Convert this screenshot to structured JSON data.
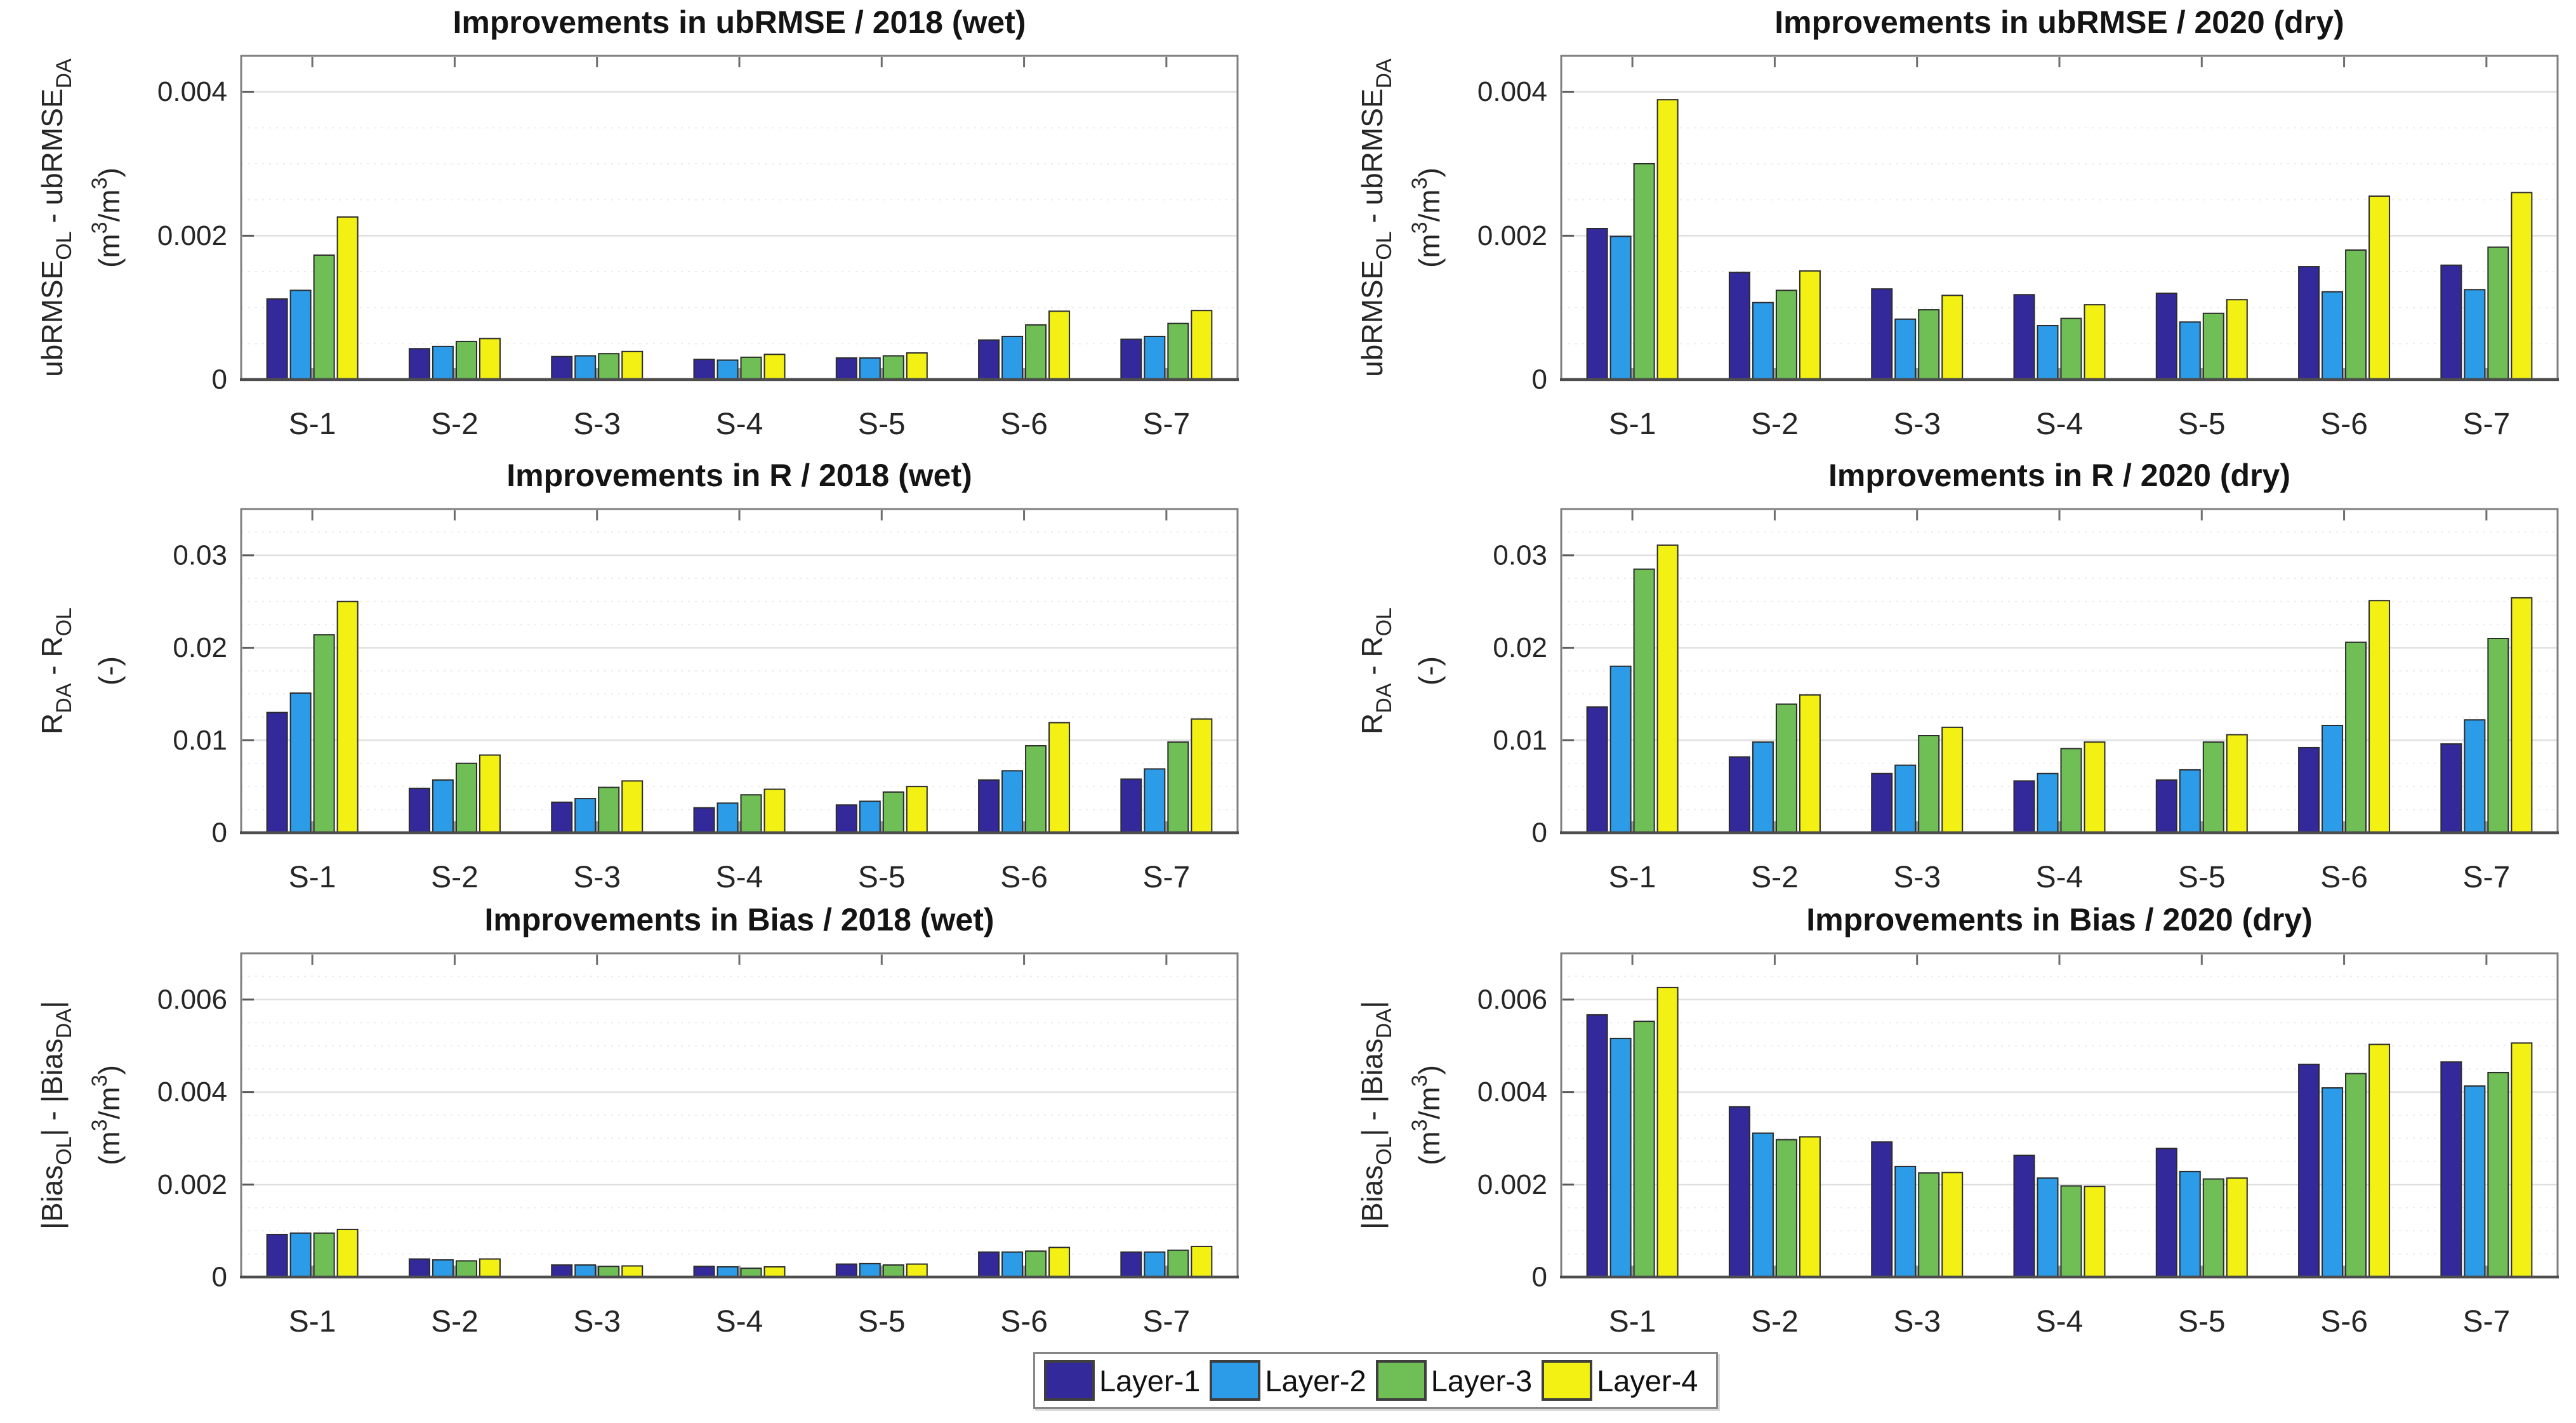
{
  "figure": {
    "background": "#FFFFFF"
  },
  "palette": {
    "bar_edge": "#2B2B2B",
    "axis_box": "#7F7F7F",
    "axis_x": "#4D4D4D",
    "grid_major": "#DFDFDF",
    "grid_minor": "#ECECEC",
    "tick_top": "#6E6E6E",
    "tick_bottom": "#9C9C9C",
    "tick_y": "#5A5A5A",
    "text": "#262626",
    "title": "#141414"
  },
  "legend": {
    "entries": [
      {
        "label": "Layer-1",
        "color": "#34299B"
      },
      {
        "label": "Layer-2",
        "color": "#2D9CE8"
      },
      {
        "label": "Layer-3",
        "color": "#6FBE56"
      },
      {
        "label": "Layer-4",
        "color": "#F3F013"
      }
    ]
  },
  "chart_data": [
    {
      "id": "ubrmse-2018-wet",
      "type": "bar",
      "title": "Improvements in ubRMSE / 2018 (wet)",
      "ylabel": [
        {
          "t": "ubRMSE"
        },
        {
          "t": "OL",
          "sub": true
        },
        {
          "t": " - ubRMSE"
        },
        {
          "t": "DA",
          "sub": true
        }
      ],
      "yunits": [
        {
          "t": "(m"
        },
        {
          "t": "3",
          "sup": true
        },
        {
          "t": "/m"
        },
        {
          "t": "3",
          "sup": true
        },
        {
          "t": ")"
        }
      ],
      "categories": [
        "S-1",
        "S-2",
        "S-3",
        "S-4",
        "S-5",
        "S-6",
        "S-7"
      ],
      "ylim": [
        0,
        0.0045
      ],
      "yticks": [
        0,
        0.002,
        0.004
      ],
      "ytick_labels": [
        "0",
        "0.002",
        "0.004"
      ],
      "minor_step": 0.0005,
      "grid": true,
      "legend_position": "south-outside",
      "series": [
        {
          "name": "Layer-1",
          "values": [
            0.00112,
            0.00043,
            0.00032,
            0.00028,
            0.0003,
            0.00055,
            0.00056
          ]
        },
        {
          "name": "Layer-2",
          "values": [
            0.00124,
            0.00046,
            0.00033,
            0.00027,
            0.0003,
            0.0006,
            0.0006
          ]
        },
        {
          "name": "Layer-3",
          "values": [
            0.00173,
            0.00053,
            0.00036,
            0.00031,
            0.00033,
            0.00076,
            0.00078
          ]
        },
        {
          "name": "Layer-4",
          "values": [
            0.00226,
            0.00057,
            0.00039,
            0.00035,
            0.00037,
            0.00095,
            0.00096
          ]
        }
      ]
    },
    {
      "id": "ubrmse-2020-dry",
      "type": "bar",
      "title": "Improvements in ubRMSE / 2020 (dry)",
      "ylabel": [
        {
          "t": "ubRMSE"
        },
        {
          "t": "OL",
          "sub": true
        },
        {
          "t": " - ubRMSE"
        },
        {
          "t": "DA",
          "sub": true
        }
      ],
      "yunits": [
        {
          "t": "(m"
        },
        {
          "t": "3",
          "sup": true
        },
        {
          "t": "/m"
        },
        {
          "t": "3",
          "sup": true
        },
        {
          "t": ")"
        }
      ],
      "categories": [
        "S-1",
        "S-2",
        "S-3",
        "S-4",
        "S-5",
        "S-6",
        "S-7"
      ],
      "ylim": [
        0,
        0.0045
      ],
      "yticks": [
        0,
        0.002,
        0.004
      ],
      "ytick_labels": [
        "0",
        "0.002",
        "0.004"
      ],
      "minor_step": 0.0005,
      "grid": true,
      "series": [
        {
          "name": "Layer-1",
          "values": [
            0.0021,
            0.00149,
            0.00126,
            0.00118,
            0.0012,
            0.00157,
            0.00159
          ]
        },
        {
          "name": "Layer-2",
          "values": [
            0.00199,
            0.00107,
            0.00084,
            0.00075,
            0.0008,
            0.00122,
            0.00125
          ]
        },
        {
          "name": "Layer-3",
          "values": [
            0.003,
            0.00124,
            0.00097,
            0.00085,
            0.00092,
            0.0018,
            0.00184
          ]
        },
        {
          "name": "Layer-4",
          "values": [
            0.00389,
            0.00151,
            0.00117,
            0.00104,
            0.00111,
            0.00255,
            0.0026
          ]
        }
      ]
    },
    {
      "id": "r-2018-wet",
      "type": "bar",
      "title": "Improvements in R / 2018 (wet)",
      "ylabel": [
        {
          "t": "R"
        },
        {
          "t": "DA",
          "sub": true
        },
        {
          "t": " - R"
        },
        {
          "t": "OL",
          "sub": true
        }
      ],
      "yunits": [
        {
          "t": "(-)"
        }
      ],
      "categories": [
        "S-1",
        "S-2",
        "S-3",
        "S-4",
        "S-5",
        "S-6",
        "S-7"
      ],
      "ylim": [
        0,
        0.035
      ],
      "yticks": [
        0,
        0.01,
        0.02,
        0.03
      ],
      "ytick_labels": [
        "0",
        "0.01",
        "0.02",
        "0.03"
      ],
      "minor_step": 0.0025,
      "grid": true,
      "series": [
        {
          "name": "Layer-1",
          "values": [
            0.013,
            0.0048,
            0.0033,
            0.0027,
            0.003,
            0.0057,
            0.0058
          ]
        },
        {
          "name": "Layer-2",
          "values": [
            0.0151,
            0.0057,
            0.0037,
            0.0032,
            0.0034,
            0.0067,
            0.0069
          ]
        },
        {
          "name": "Layer-3",
          "values": [
            0.0214,
            0.0075,
            0.0049,
            0.0041,
            0.0044,
            0.0094,
            0.0098
          ]
        },
        {
          "name": "Layer-4",
          "values": [
            0.025,
            0.0084,
            0.0056,
            0.0047,
            0.005,
            0.0119,
            0.0123
          ]
        }
      ]
    },
    {
      "id": "r-2020-dry",
      "type": "bar",
      "title": "Improvements in R / 2020 (dry)",
      "ylabel": [
        {
          "t": "R"
        },
        {
          "t": "DA",
          "sub": true
        },
        {
          "t": " - R"
        },
        {
          "t": "OL",
          "sub": true
        }
      ],
      "yunits": [
        {
          "t": "(-)"
        }
      ],
      "categories": [
        "S-1",
        "S-2",
        "S-3",
        "S-4",
        "S-5",
        "S-6",
        "S-7"
      ],
      "ylim": [
        0,
        0.035
      ],
      "yticks": [
        0,
        0.01,
        0.02,
        0.03
      ],
      "ytick_labels": [
        "0",
        "0.01",
        "0.02",
        "0.03"
      ],
      "minor_step": 0.0025,
      "grid": true,
      "series": [
        {
          "name": "Layer-1",
          "values": [
            0.0136,
            0.0082,
            0.0064,
            0.0056,
            0.0057,
            0.0092,
            0.0096
          ]
        },
        {
          "name": "Layer-2",
          "values": [
            0.018,
            0.0098,
            0.0073,
            0.0064,
            0.0068,
            0.0116,
            0.0122
          ]
        },
        {
          "name": "Layer-3",
          "values": [
            0.0285,
            0.0139,
            0.0105,
            0.0091,
            0.0098,
            0.0206,
            0.021
          ]
        },
        {
          "name": "Layer-4",
          "values": [
            0.0311,
            0.0149,
            0.0114,
            0.0098,
            0.0106,
            0.0251,
            0.0254
          ]
        }
      ]
    },
    {
      "id": "bias-2018-wet",
      "type": "bar",
      "title": "Improvements in Bias / 2018 (wet)",
      "ylabel": [
        {
          "t": "|Bias"
        },
        {
          "t": "OL",
          "sub": true
        },
        {
          "t": "| - |Bias"
        },
        {
          "t": "DA",
          "sub": true
        },
        {
          "t": "|"
        }
      ],
      "yunits": [
        {
          "t": "(m"
        },
        {
          "t": "3",
          "sup": true
        },
        {
          "t": "/m"
        },
        {
          "t": "3",
          "sup": true
        },
        {
          "t": ")"
        }
      ],
      "categories": [
        "S-1",
        "S-2",
        "S-3",
        "S-4",
        "S-5",
        "S-6",
        "S-7"
      ],
      "ylim": [
        0,
        0.007
      ],
      "yticks": [
        0,
        0.002,
        0.004,
        0.006
      ],
      "ytick_labels": [
        "0",
        "0.002",
        "0.004",
        "0.006"
      ],
      "minor_step": 0.0005,
      "grid": true,
      "series": [
        {
          "name": "Layer-1",
          "values": [
            0.00092,
            0.00039,
            0.00026,
            0.00023,
            0.00028,
            0.00054,
            0.00054
          ]
        },
        {
          "name": "Layer-2",
          "values": [
            0.00095,
            0.00037,
            0.00026,
            0.00022,
            0.00029,
            0.00054,
            0.00054
          ]
        },
        {
          "name": "Layer-3",
          "values": [
            0.00095,
            0.00035,
            0.00023,
            0.00019,
            0.00026,
            0.00056,
            0.00058
          ]
        },
        {
          "name": "Layer-4",
          "values": [
            0.00103,
            0.00039,
            0.00024,
            0.00022,
            0.00028,
            0.00064,
            0.00066
          ]
        }
      ]
    },
    {
      "id": "bias-2020-dry",
      "type": "bar",
      "title": "Improvements in Bias / 2020 (dry)",
      "ylabel": [
        {
          "t": "|Bias"
        },
        {
          "t": "OL",
          "sub": true
        },
        {
          "t": "| - |Bias"
        },
        {
          "t": "DA",
          "sub": true
        },
        {
          "t": "|"
        }
      ],
      "yunits": [
        {
          "t": "(m"
        },
        {
          "t": "3",
          "sup": true
        },
        {
          "t": "/m"
        },
        {
          "t": "3",
          "sup": true
        },
        {
          "t": ")"
        }
      ],
      "categories": [
        "S-1",
        "S-2",
        "S-3",
        "S-4",
        "S-5",
        "S-6",
        "S-7"
      ],
      "ylim": [
        0,
        0.007
      ],
      "yticks": [
        0,
        0.002,
        0.004,
        0.006
      ],
      "ytick_labels": [
        "0",
        "0.002",
        "0.004",
        "0.006"
      ],
      "minor_step": 0.0005,
      "grid": true,
      "series": [
        {
          "name": "Layer-1",
          "values": [
            0.00567,
            0.00368,
            0.00292,
            0.00263,
            0.00278,
            0.0046,
            0.00465
          ]
        },
        {
          "name": "Layer-2",
          "values": [
            0.00516,
            0.00311,
            0.00239,
            0.00214,
            0.00228,
            0.00409,
            0.00413
          ]
        },
        {
          "name": "Layer-3",
          "values": [
            0.00553,
            0.00297,
            0.00225,
            0.00197,
            0.00212,
            0.0044,
            0.00442
          ]
        },
        {
          "name": "Layer-4",
          "values": [
            0.00626,
            0.00303,
            0.00226,
            0.00196,
            0.00214,
            0.00503,
            0.00506
          ]
        }
      ]
    }
  ]
}
